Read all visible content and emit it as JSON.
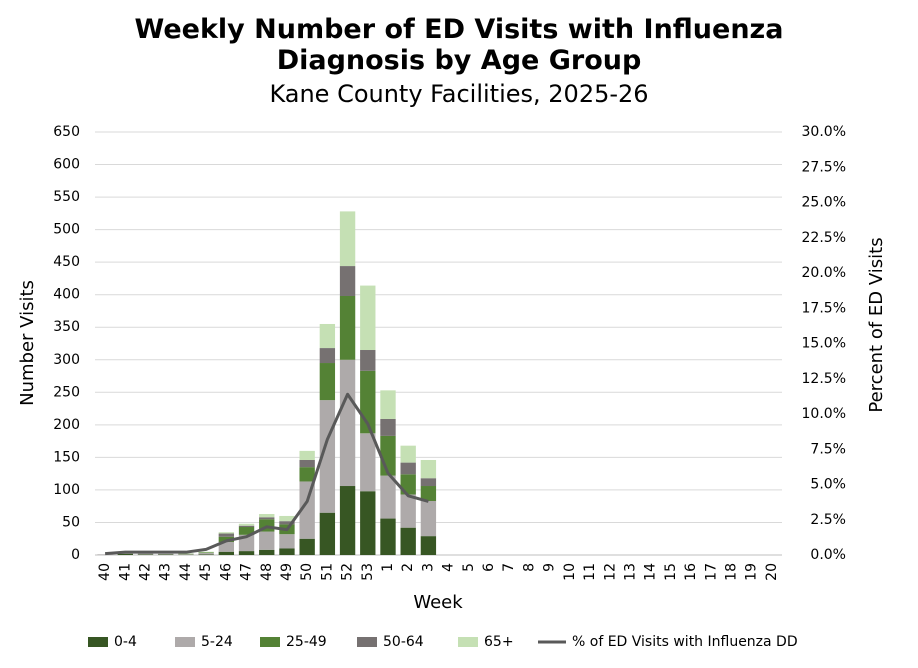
{
  "chart_data": {
    "type": "bar",
    "stacked": true,
    "title": "Weekly Number of ED Visits with Influenza Diagnosis by Age Group",
    "subtitle": "Kane County Facilities, 2025-26",
    "x_label": "Week",
    "y_label": "Number Visits",
    "y2_label": "Percent of ED Visits",
    "categories": [
      "40",
      "41",
      "42",
      "43",
      "44",
      "45",
      "46",
      "47",
      "48",
      "49",
      "50",
      "51",
      "52",
      "53",
      "1",
      "2",
      "3",
      "4",
      "5",
      "6",
      "7",
      "8",
      "9",
      "10",
      "11",
      "12",
      "13",
      "14",
      "15",
      "16",
      "17",
      "18",
      "19",
      "20"
    ],
    "series": [
      {
        "name": "0-4",
        "color": "#375623",
        "values": [
          0,
          2,
          1,
          1,
          0,
          1,
          5,
          6,
          8,
          10,
          25,
          65,
          106,
          98,
          56,
          42,
          29,
          null,
          null,
          null,
          null,
          null,
          null,
          null,
          null,
          null,
          null,
          null,
          null,
          null,
          null,
          null,
          null,
          null
        ]
      },
      {
        "name": "5-24",
        "color": "#aeaaaa",
        "values": [
          1,
          2,
          2,
          1,
          1,
          2,
          15,
          25,
          28,
          22,
          88,
          173,
          194,
          89,
          66,
          51,
          54,
          null,
          null,
          null,
          null,
          null,
          null,
          null,
          null,
          null,
          null,
          null,
          null,
          null,
          null,
          null,
          null,
          null
        ]
      },
      {
        "name": "25-49",
        "color": "#548235",
        "values": [
          0,
          1,
          1,
          0,
          1,
          1,
          8,
          12,
          19,
          15,
          22,
          57,
          98,
          96,
          61,
          31,
          23,
          null,
          null,
          null,
          null,
          null,
          null,
          null,
          null,
          null,
          null,
          null,
          null,
          null,
          null,
          null,
          null,
          null
        ]
      },
      {
        "name": "50-64",
        "color": "#767171",
        "values": [
          0,
          0,
          0,
          0,
          0,
          0,
          5,
          2,
          3,
          5,
          11,
          23,
          46,
          32,
          26,
          18,
          12,
          null,
          null,
          null,
          null,
          null,
          null,
          null,
          null,
          null,
          null,
          null,
          null,
          null,
          null,
          null,
          null,
          null
        ]
      },
      {
        "name": "65+",
        "color": "#c5e0b4",
        "values": [
          0,
          0,
          0,
          0,
          0,
          1,
          2,
          3,
          5,
          8,
          14,
          37,
          84,
          99,
          44,
          26,
          28,
          null,
          null,
          null,
          null,
          null,
          null,
          null,
          null,
          null,
          null,
          null,
          null,
          null,
          null,
          null,
          null,
          null
        ]
      },
      {
        "name": "% of ED Visits with Influenza DD",
        "type": "line",
        "axis": "y2",
        "color": "#595959",
        "values": [
          0.1,
          0.2,
          0.2,
          0.2,
          0.2,
          0.4,
          1.0,
          1.3,
          2.0,
          1.8,
          3.8,
          8.2,
          11.4,
          9.3,
          5.8,
          4.2,
          3.8,
          null,
          null,
          null,
          null,
          null,
          null,
          null,
          null,
          null,
          null,
          null,
          null,
          null,
          null,
          null,
          null,
          null
        ]
      }
    ],
    "ylim": [
      0,
      650
    ],
    "yticks": [
      0,
      50,
      100,
      150,
      200,
      250,
      300,
      350,
      400,
      450,
      500,
      550,
      600,
      650
    ],
    "y2lim": [
      0,
      30
    ],
    "y2ticks": [
      {
        "value": 0,
        "label": "0.0%"
      },
      {
        "value": 2.5,
        "label": "2.5%"
      },
      {
        "value": 5,
        "label": "5.0%"
      },
      {
        "value": 7.5,
        "label": "7.5%"
      },
      {
        "value": 10,
        "label": "10.0%"
      },
      {
        "value": 12.5,
        "label": "12.5%"
      },
      {
        "value": 15,
        "label": "15.0%"
      },
      {
        "value": 17.5,
        "label": "17.5%"
      },
      {
        "value": 20,
        "label": "20.0%"
      },
      {
        "value": 22.5,
        "label": "22.5%"
      },
      {
        "value": 25,
        "label": "25.0%"
      },
      {
        "value": 27.5,
        "label": "27.5%"
      },
      {
        "value": 30,
        "label": "30.0%"
      }
    ],
    "grid": true,
    "legend": "bottom"
  }
}
